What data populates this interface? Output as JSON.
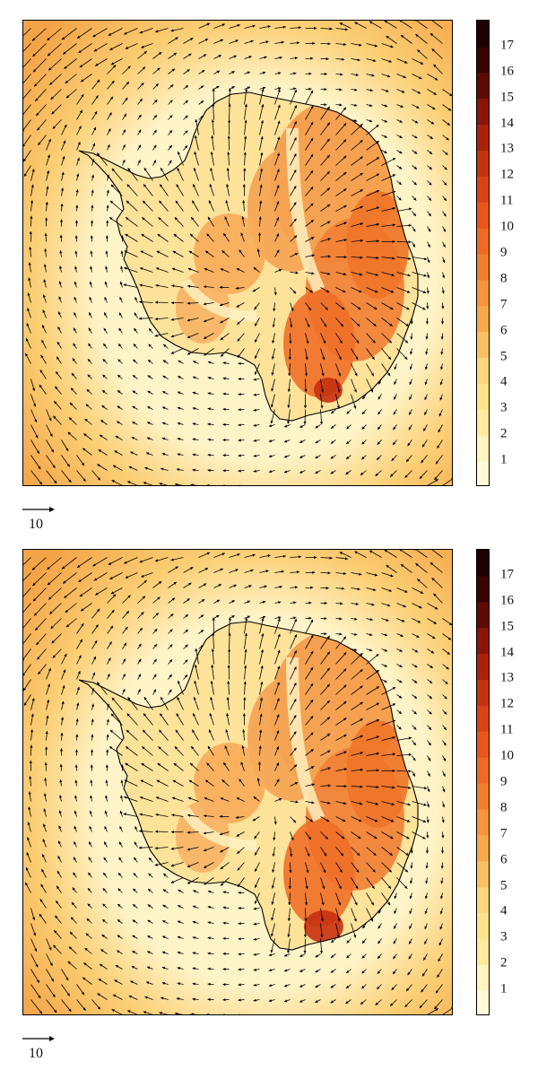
{
  "panels": [
    {
      "id": "top",
      "colorbar_ticks": [
        "1",
        "2",
        "3",
        "4",
        "5",
        "6",
        "7",
        "8",
        "9",
        "10",
        "11",
        "12",
        "13",
        "14",
        "15",
        "16",
        "17"
      ],
      "reference_vector": {
        "label": "10",
        "magnitude": 10
      }
    },
    {
      "id": "bottom",
      "colorbar_ticks": [
        "1",
        "2",
        "3",
        "4",
        "5",
        "6",
        "7",
        "8",
        "9",
        "10",
        "11",
        "12",
        "13",
        "14",
        "15",
        "16",
        "17"
      ],
      "reference_vector": {
        "label": "10",
        "magnitude": 10
      }
    }
  ],
  "colormap": [
    "#fffbd8",
    "#fff3c0",
    "#ffeaa0",
    "#fde48c",
    "#fcd67a",
    "#fbc062",
    "#f9a94c",
    "#f7943c",
    "#f47e2e",
    "#f06a24",
    "#e8561c",
    "#d84415",
    "#c43210",
    "#aa220b",
    "#881508",
    "#600a04",
    "#3a0302"
  ],
  "map_colors": {
    "ocean_far": "#f4a446",
    "ocean_mid": "#fbce74",
    "ocean_near": "#fff4c8",
    "land_high": "#ef7024",
    "land_peak": "#c8300f",
    "coastline": "#000000",
    "arrows": "#000000"
  }
}
